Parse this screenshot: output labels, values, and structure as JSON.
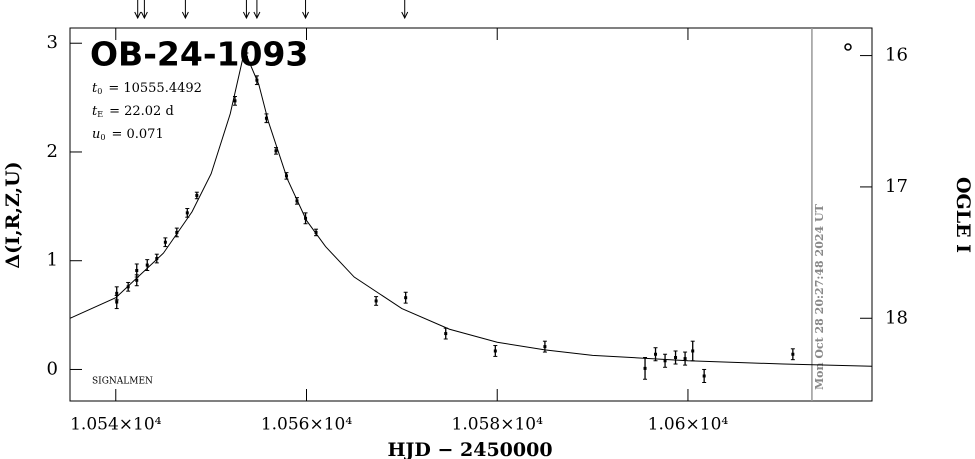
{
  "chart_data": {
    "type": "scatter",
    "title": "OB-24-1093",
    "params": [
      {
        "symbol": "t",
        "sub": "0",
        "text": "= 10555.4492"
      },
      {
        "symbol": "t",
        "sub": "E",
        "text": "= 22.02 d"
      },
      {
        "symbol": "u",
        "sub": "0",
        "text": "= 0.071"
      }
    ],
    "note": "SIGNALMEN",
    "timestamp": "Mon Oct 28 20:27:48 2024 UT",
    "timestamp_x": 10613.0,
    "arrows_x": [
      10542.3,
      10543.0,
      10547.3,
      10553.7,
      10554.8,
      10559.9,
      10570.3
    ],
    "x_label": "HJD − 2450000",
    "y_label": "Δ(I,R,Z,U)",
    "y2_label": "OGLE I",
    "xlim": [
      10535.2,
      10619.3
    ],
    "ylim": [
      -0.29,
      3.14
    ],
    "y2lim": [
      18.63,
      15.79
    ],
    "xticks": [
      {
        "value": 10540,
        "label": "1.054×10⁴"
      },
      {
        "value": 10560,
        "label": "1.056×10⁴"
      },
      {
        "value": 10580,
        "label": "1.058×10⁴"
      },
      {
        "value": 10600,
        "label": "1.06×10⁴"
      }
    ],
    "yticks": [
      0,
      1,
      2,
      3
    ],
    "y2ticks": [
      16,
      17,
      18
    ],
    "series": [
      {
        "type": "errorbar",
        "color": "#000000",
        "x": [
          10540.1,
          10540.1,
          10541.3,
          10542.2,
          10542.2,
          10543.3,
          10544.3,
          10545.2,
          10546.4,
          10547.5,
          10548.5,
          10552.5,
          10553.7,
          10554.8,
          10555.8,
          10556.8,
          10557.9,
          10559.0,
          10559.9,
          10561.0,
          10567.3,
          10570.4,
          10574.6,
          10579.8,
          10585.0,
          10595.5,
          10596.6,
          10597.6,
          10598.7,
          10599.7,
          10600.5,
          10601.7,
          10611.0
        ],
        "values": [
          0.7,
          0.62,
          0.76,
          0.91,
          0.82,
          0.96,
          1.02,
          1.17,
          1.26,
          1.44,
          1.6,
          2.47,
          2.87,
          2.66,
          2.31,
          2.01,
          1.78,
          1.55,
          1.39,
          1.26,
          0.63,
          0.66,
          0.33,
          0.17,
          0.21,
          0.01,
          0.14,
          0.08,
          0.11,
          0.1,
          0.17,
          -0.06,
          0.14
        ],
        "errors": [
          0.06,
          0.06,
          0.04,
          0.06,
          0.05,
          0.05,
          0.04,
          0.04,
          0.04,
          0.04,
          0.03,
          0.04,
          0.04,
          0.04,
          0.04,
          0.03,
          0.03,
          0.03,
          0.05,
          0.03,
          0.04,
          0.05,
          0.05,
          0.05,
          0.05,
          0.1,
          0.06,
          0.06,
          0.06,
          0.06,
          0.09,
          0.06,
          0.05
        ]
      },
      {
        "type": "line",
        "color": "#000000",
        "x": [
          10535.2,
          10540,
          10545,
          10548,
          10550,
          10552,
          10553.5,
          10555,
          10556,
          10558,
          10560,
          10562,
          10565,
          10570,
          10575,
          10580,
          10585,
          10590,
          10600,
          10610,
          10619.3
        ],
        "values": [
          0.47,
          0.66,
          1.07,
          1.45,
          1.8,
          2.35,
          2.93,
          2.62,
          2.28,
          1.75,
          1.37,
          1.13,
          0.85,
          0.56,
          0.37,
          0.25,
          0.18,
          0.13,
          0.08,
          0.05,
          0.03
        ]
      }
    ]
  }
}
